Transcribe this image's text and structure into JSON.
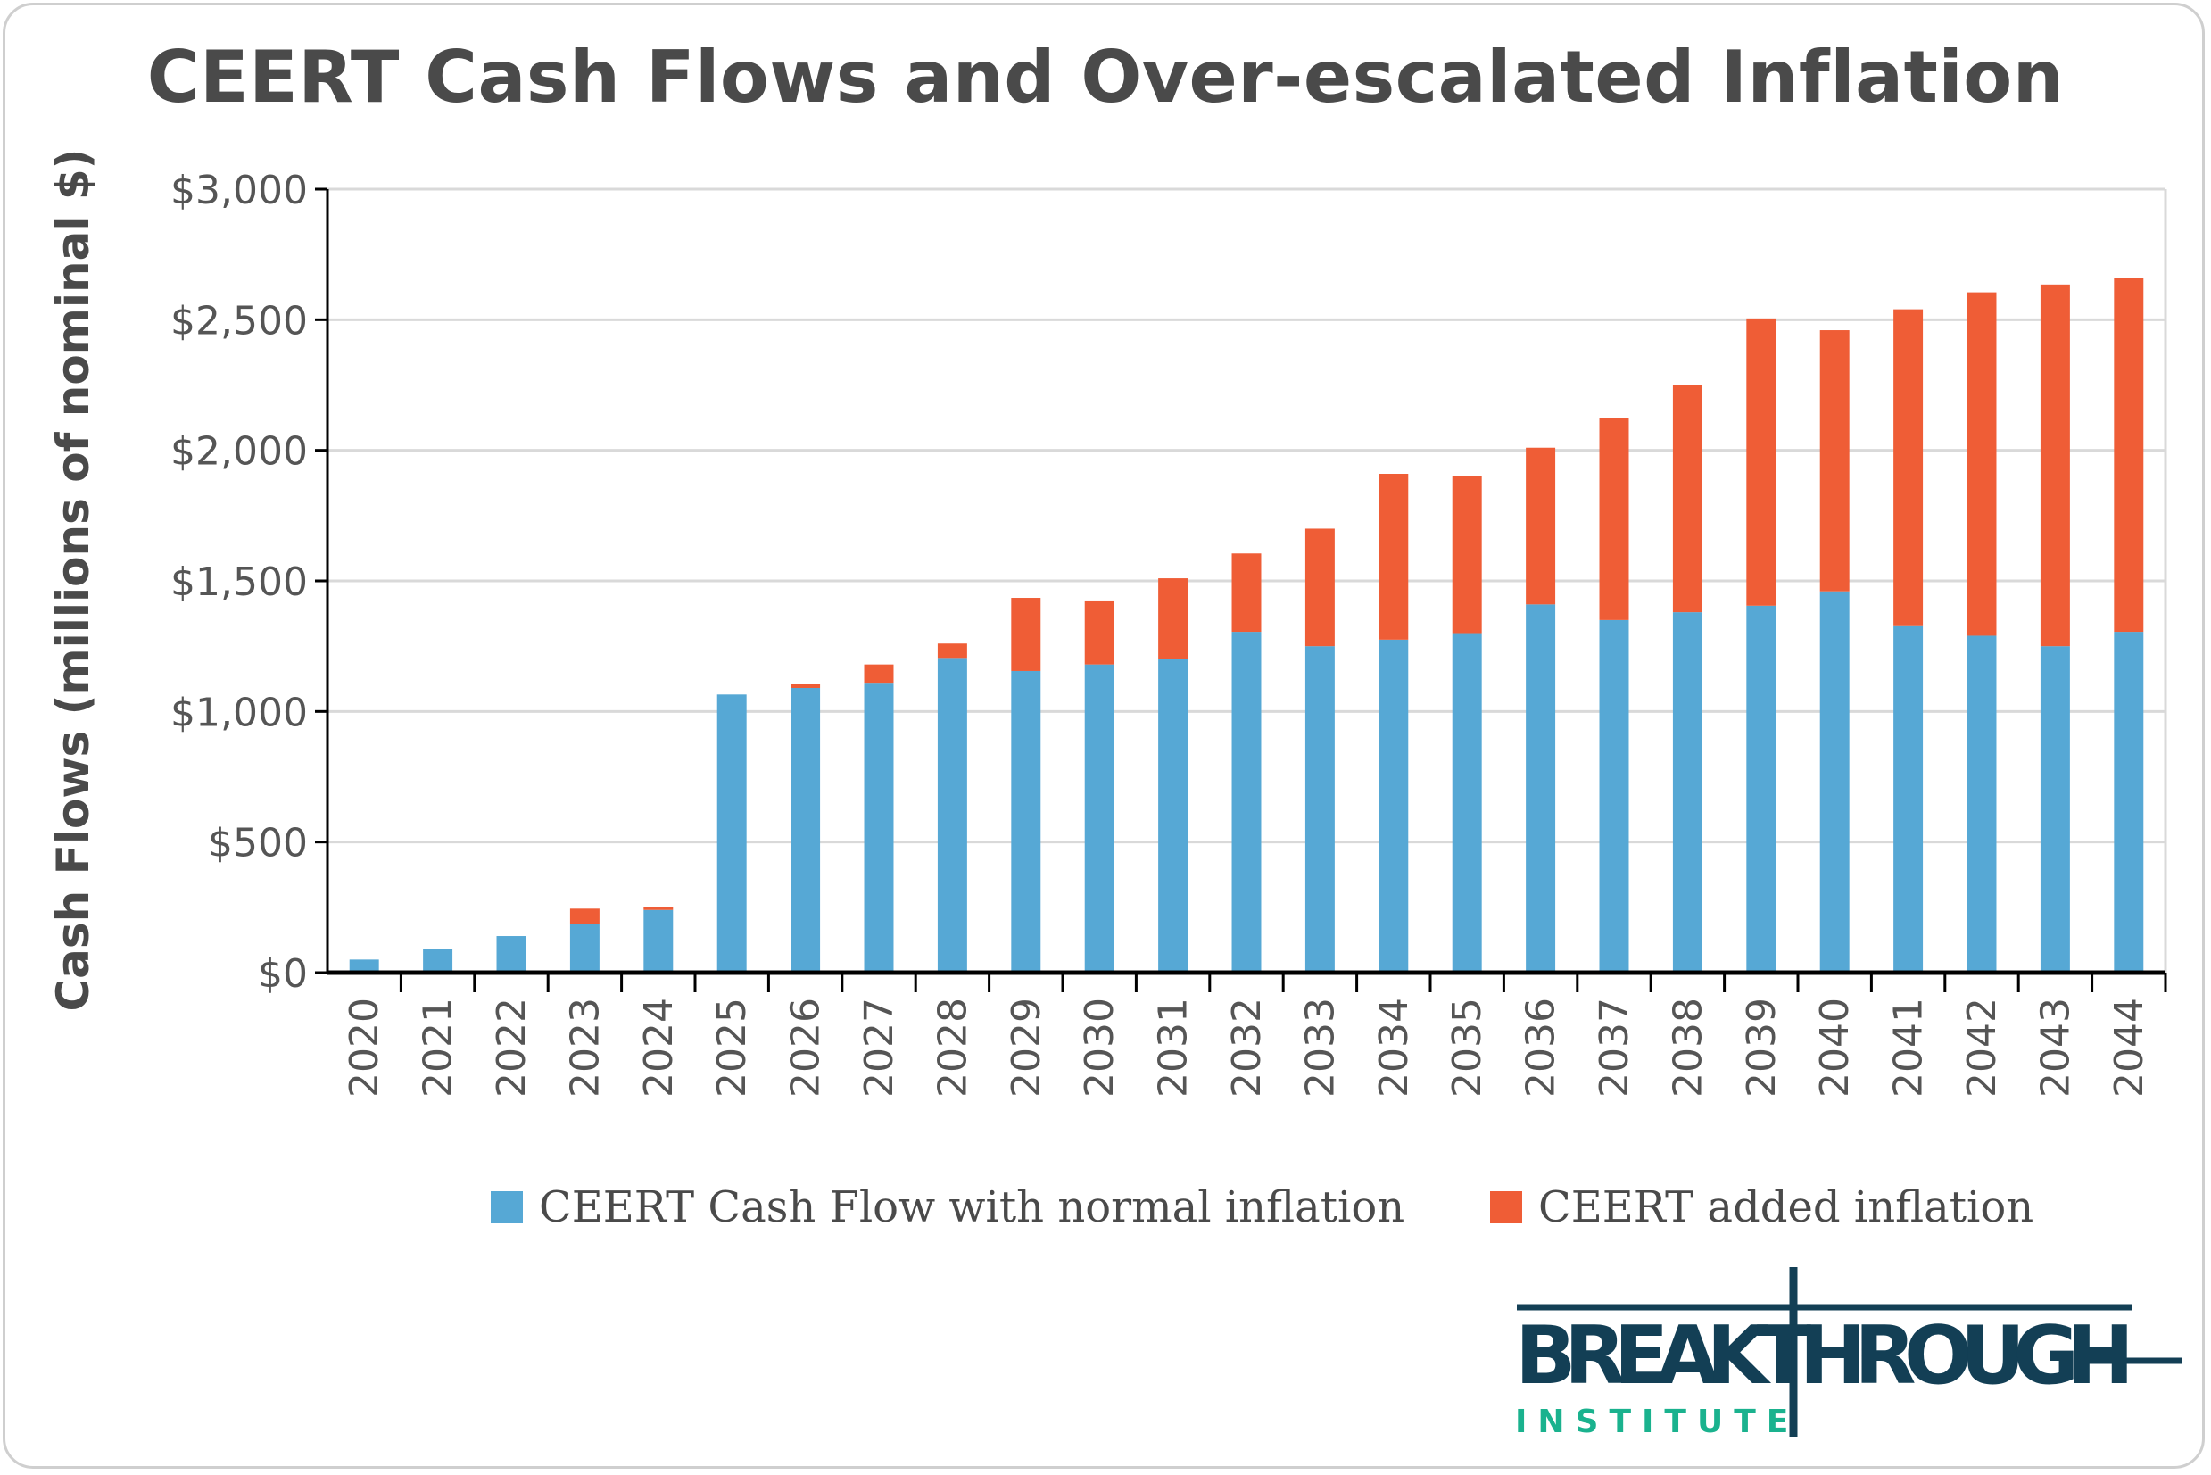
{
  "chart_data": {
    "type": "bar",
    "stacked": true,
    "title": "CEERT Cash Flows and Over-escalated Inflation",
    "xlabel": "",
    "ylabel": "Cash Flows (millions of nominal $)",
    "ylim": [
      0,
      3000
    ],
    "yticks": [
      0,
      500,
      1000,
      1500,
      2000,
      2500,
      3000
    ],
    "ytick_labels": [
      "$0",
      "$500",
      "$1,000",
      "$1,500",
      "$2,000",
      "$2,500",
      "$3,000"
    ],
    "grid": true,
    "legend_position": "bottom",
    "categories": [
      "2020",
      "2021",
      "2022",
      "2023",
      "2024",
      "2025",
      "2026",
      "2027",
      "2028",
      "2029",
      "2030",
      "2031",
      "2032",
      "2033",
      "2034",
      "2035",
      "2036",
      "2037",
      "2038",
      "2039",
      "2040",
      "2041",
      "2042",
      "2043",
      "2044"
    ],
    "series": [
      {
        "name": "CEERT Cash Flow with normal inflation",
        "color": "#56a8d5",
        "values": [
          50,
          90,
          140,
          185,
          240,
          1065,
          1090,
          1110,
          1205,
          1155,
          1180,
          1200,
          1305,
          1250,
          1275,
          1300,
          1410,
          1350,
          1380,
          1405,
          1460,
          1330,
          1290,
          1250,
          1305
        ]
      },
      {
        "name": "CEERT added inflation",
        "color": "#ef5d36",
        "values": [
          0,
          0,
          0,
          60,
          10,
          0,
          15,
          70,
          55,
          280,
          245,
          310,
          300,
          450,
          635,
          600,
          600,
          775,
          870,
          1100,
          1000,
          1210,
          1315,
          1385,
          1355
        ]
      }
    ]
  },
  "logo": {
    "text": "BREAKTHROUGH",
    "subtext": "INSTITUTE",
    "color": "#133f55",
    "accent": "#1ab28e"
  }
}
